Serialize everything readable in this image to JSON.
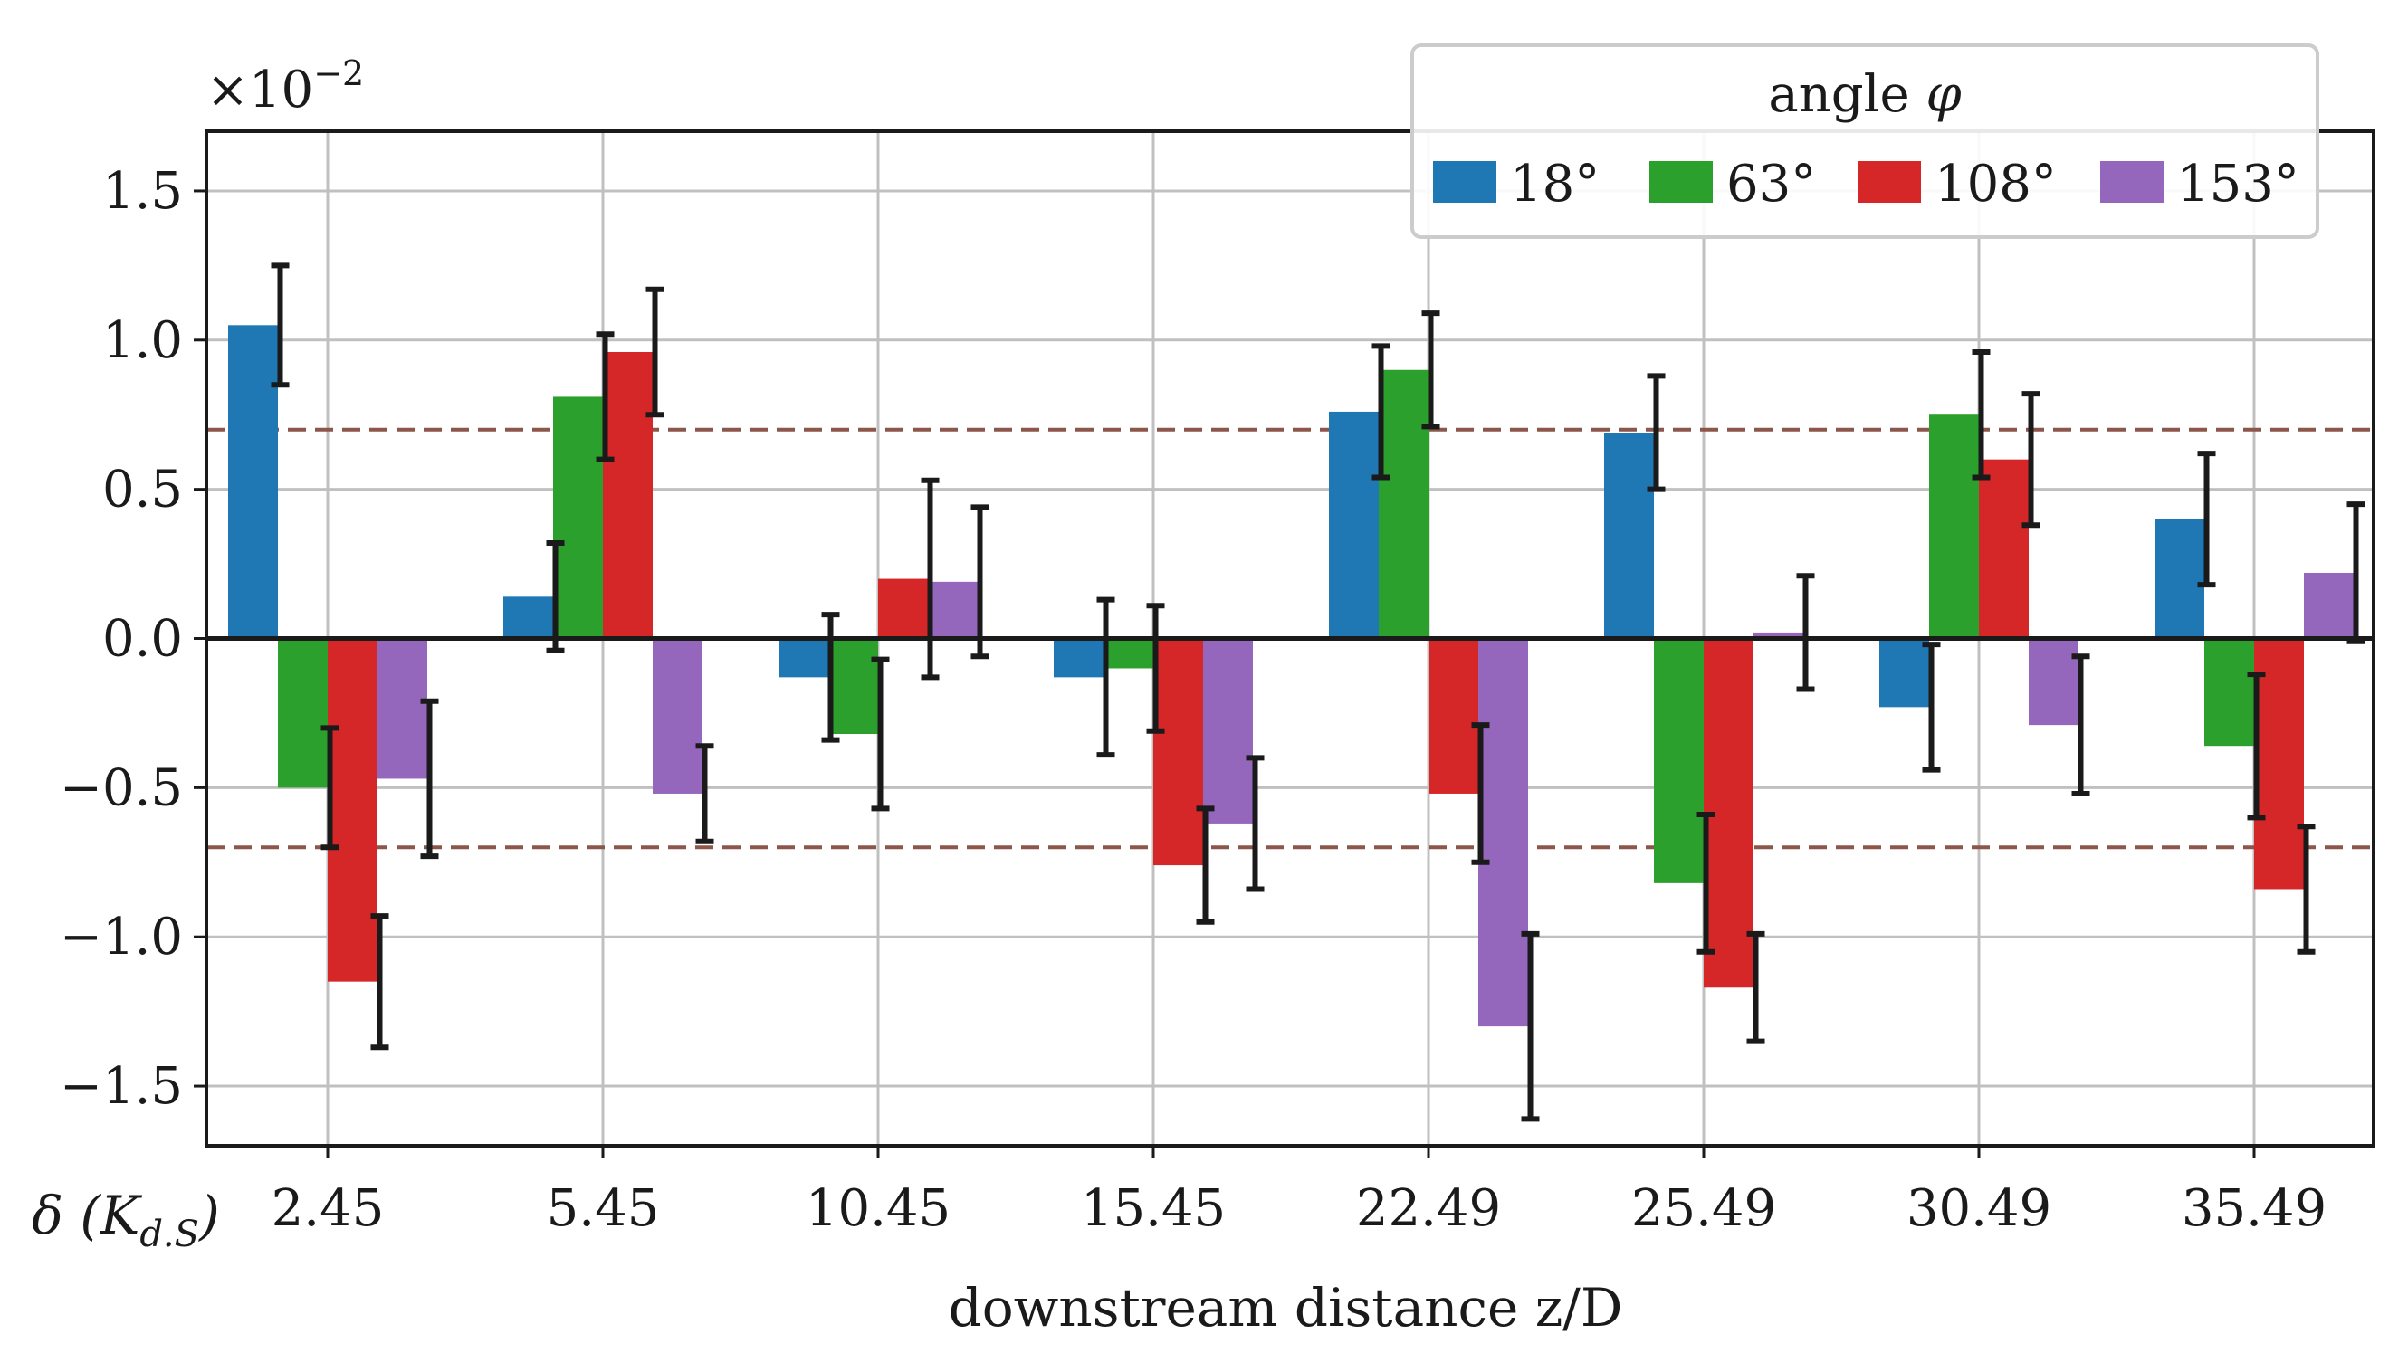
{
  "chart_data": {
    "type": "bar",
    "title": "",
    "xlabel": "downstream distance z/D",
    "ylabel": "δ (K_{d.S})",
    "ylabel_text": "δ (K",
    "ylabel_sub": "d.S",
    "ylabel_close": ")",
    "scale_label": "×10",
    "scale_exponent": "−2",
    "categories": [
      "2.45",
      "5.45",
      "10.45",
      "15.45",
      "22.49",
      "25.49",
      "30.49",
      "35.49"
    ],
    "ylim": [
      -1.7,
      1.7
    ],
    "yticks": [
      -1.5,
      -1.0,
      -0.5,
      0.0,
      0.5,
      1.0,
      1.5
    ],
    "ytick_labels": [
      "−1.5",
      "−1.0",
      "−0.5",
      "0.0",
      "0.5",
      "1.0",
      "1.5"
    ],
    "threshold_lines": [
      0.7,
      -0.7
    ],
    "grid": true,
    "legend_title_text": "angle ",
    "legend_title_symbol": "φ",
    "legend_position": "top-right",
    "series": [
      {
        "name": "18°",
        "color": "#1f77b4",
        "values": [
          1.05,
          0.14,
          -0.13,
          -0.13,
          0.76,
          0.69,
          -0.23,
          0.4
        ],
        "errors": [
          0.2,
          0.18,
          0.21,
          0.26,
          0.22,
          0.19,
          0.21,
          0.22
        ]
      },
      {
        "name": "63°",
        "color": "#2ca02c",
        "values": [
          -0.5,
          0.81,
          -0.32,
          -0.1,
          0.9,
          -0.82,
          0.75,
          -0.36
        ],
        "errors": [
          0.2,
          0.21,
          0.25,
          0.21,
          0.19,
          0.23,
          0.21,
          0.24
        ]
      },
      {
        "name": "108°",
        "color": "#d62728",
        "values": [
          -1.15,
          0.96,
          0.2,
          -0.76,
          -0.52,
          -1.17,
          0.6,
          -0.84
        ],
        "errors": [
          0.22,
          0.21,
          0.33,
          0.19,
          0.23,
          0.18,
          0.22,
          0.21
        ]
      },
      {
        "name": "153°",
        "color": "#9467bd",
        "values": [
          -0.47,
          -0.52,
          0.19,
          -0.62,
          -1.3,
          0.02,
          -0.29,
          0.22
        ],
        "errors": [
          0.26,
          0.16,
          0.25,
          0.22,
          0.31,
          0.19,
          0.23,
          0.23
        ]
      }
    ],
    "colors": {
      "axis": "#1a1a1a",
      "grid": "#c0c0c0",
      "threshold": "#8c564b",
      "errorbar": "#1a1a1a",
      "legend_border": "#cccccc"
    }
  }
}
